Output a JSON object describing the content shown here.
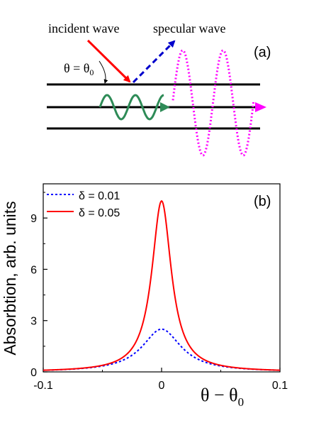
{
  "panel_a": {
    "panel_label": "(a)",
    "incident_label": "incident wave",
    "specular_label": "specular wave",
    "angle_label_theta": "θ = θ",
    "angle_label_sub": "0"
  },
  "panel_b": {
    "panel_label": "(b)"
  },
  "colors": {
    "incident": "#ff0000",
    "specular": "#0000cc",
    "guided": "#2e8b57",
    "radiated": "#ff00ff",
    "curve_small": "#0000ff",
    "curve_large": "#ff0000"
  },
  "chart_data": {
    "type": "line",
    "title": "",
    "xlabel": "θ − θ",
    "xlabel_sub": "0",
    "ylabel": "Absorbtion, arb. units",
    "xlim": [
      -0.1,
      0.1
    ],
    "ylim": [
      0,
      11
    ],
    "xticks": [
      -0.1,
      0,
      0.1
    ],
    "xtick_labels": [
      "-0.1",
      "0",
      "0.1"
    ],
    "yticks": [
      0,
      3,
      6,
      9
    ],
    "ytick_labels": [
      "0",
      "3",
      "6",
      "9"
    ],
    "legend_placement": "top-left",
    "series": [
      {
        "name": "δ = 0.01",
        "style": "dotted",
        "x": [
          -0.1,
          -0.09,
          -0.08,
          -0.07,
          -0.06,
          -0.05,
          -0.04,
          -0.03,
          -0.025,
          -0.02,
          -0.015,
          -0.01,
          -0.005,
          0,
          0.005,
          0.01,
          0.015,
          0.02,
          0.025,
          0.03,
          0.04,
          0.05,
          0.06,
          0.07,
          0.08,
          0.09,
          0.1
        ],
        "y": [
          0.09,
          0.11,
          0.14,
          0.18,
          0.25,
          0.35,
          0.52,
          0.83,
          1.06,
          1.37,
          1.76,
          2.14,
          2.42,
          2.5,
          2.42,
          2.14,
          1.76,
          1.37,
          1.06,
          0.83,
          0.52,
          0.35,
          0.25,
          0.18,
          0.14,
          0.11,
          0.09
        ]
      },
      {
        "name": "δ = 0.05",
        "style": "solid",
        "x": [
          -0.1,
          -0.09,
          -0.08,
          -0.07,
          -0.06,
          -0.05,
          -0.04,
          -0.03,
          -0.025,
          -0.02,
          -0.015,
          -0.01,
          -0.005,
          0,
          0.005,
          0.01,
          0.015,
          0.02,
          0.025,
          0.03,
          0.04,
          0.05,
          0.06,
          0.07,
          0.08,
          0.09,
          0.1
        ],
        "y": [
          0.1,
          0.12,
          0.15,
          0.2,
          0.27,
          0.38,
          0.6,
          1.0,
          1.39,
          2.0,
          3.07,
          5.0,
          8.0,
          10.0,
          8.0,
          5.0,
          3.07,
          2.0,
          1.39,
          1.0,
          0.6,
          0.38,
          0.27,
          0.2,
          0.15,
          0.12,
          0.1
        ]
      }
    ]
  }
}
